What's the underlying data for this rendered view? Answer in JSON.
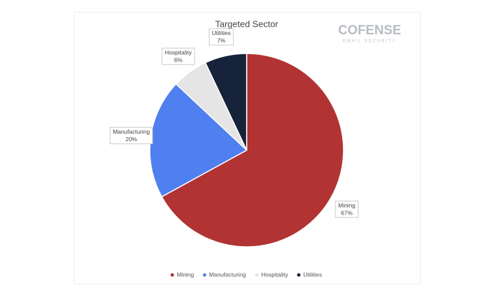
{
  "chart_data": {
    "type": "pie",
    "title": "Targeted Sector",
    "categories": [
      "Mining",
      "Manufacturing",
      "Hospitality",
      "Utilities"
    ],
    "values": [
      67,
      20,
      6,
      7
    ],
    "value_labels": [
      "67%",
      "20%",
      "6%",
      "7%"
    ],
    "colors": [
      "#b13333",
      "#5080ef",
      "#e5e5e5",
      "#17233a"
    ],
    "legend": "bottom"
  },
  "logo": {
    "name": "COFENSE",
    "tagline": "EMAIL SECURITY"
  }
}
